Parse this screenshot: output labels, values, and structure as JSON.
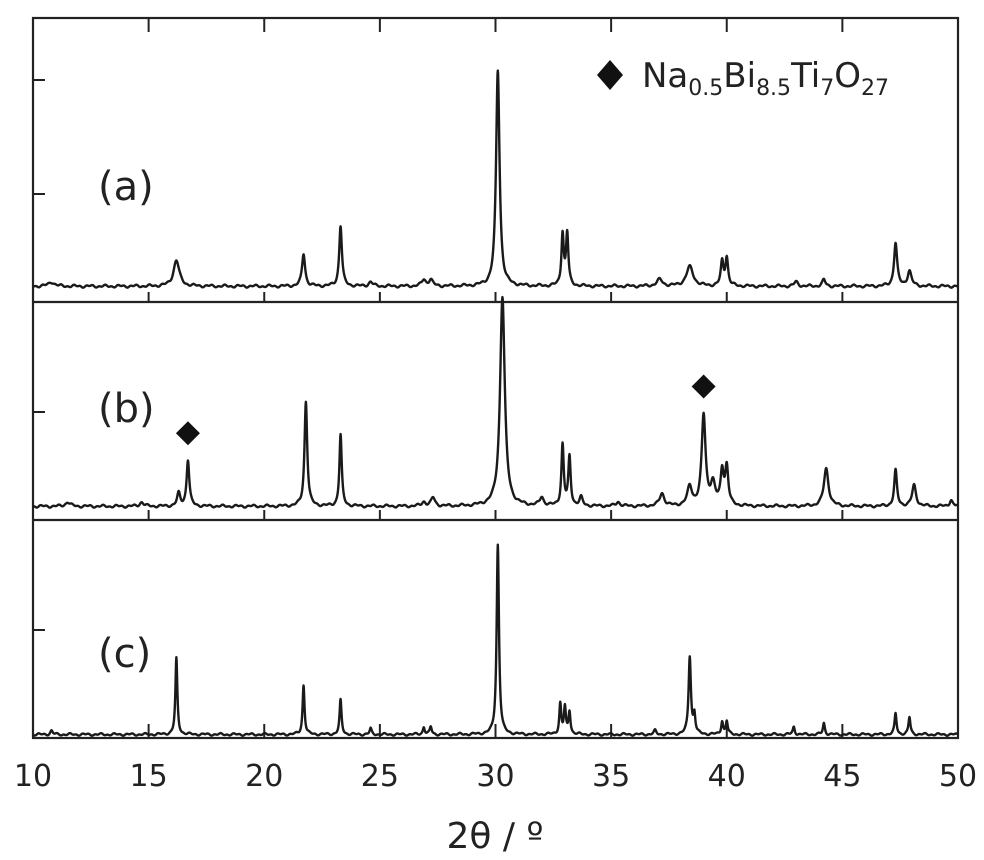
{
  "chart_data": {
    "type": "line",
    "xlabel": "2θ / º",
    "ylabel": "",
    "xlim": [
      10,
      50
    ],
    "x_ticks": [
      10,
      15,
      20,
      25,
      30,
      35,
      40,
      45,
      50
    ],
    "grid": false,
    "legend": {
      "placement": "top-right",
      "marker": "diamond",
      "formula": [
        {
          "text": "Na",
          "sub": false
        },
        {
          "text": "0.5",
          "sub": true
        },
        {
          "text": "Bi",
          "sub": false
        },
        {
          "text": "8.5",
          "sub": true
        },
        {
          "text": "Ti",
          "sub": false
        },
        {
          "text": "7",
          "sub": true
        },
        {
          "text": "O",
          "sub": false
        },
        {
          "text": "27",
          "sub": true
        }
      ]
    },
    "panels": [
      {
        "label": "(a)",
        "peaks": [
          {
            "x": 10.8,
            "h": 0.02,
            "w": 0.15
          },
          {
            "x": 16.2,
            "h": 0.12,
            "w": 0.15
          },
          {
            "x": 21.7,
            "h": 0.15,
            "w": 0.08
          },
          {
            "x": 23.3,
            "h": 0.28,
            "w": 0.07
          },
          {
            "x": 24.6,
            "h": 0.02,
            "w": 0.1
          },
          {
            "x": 26.9,
            "h": 0.03,
            "w": 0.1
          },
          {
            "x": 27.2,
            "h": 0.03,
            "w": 0.1
          },
          {
            "x": 30.1,
            "h": 1.0,
            "w": 0.09
          },
          {
            "x": 32.9,
            "h": 0.24,
            "w": 0.06
          },
          {
            "x": 33.1,
            "h": 0.24,
            "w": 0.06
          },
          {
            "x": 37.1,
            "h": 0.03,
            "w": 0.15
          },
          {
            "x": 38.4,
            "h": 0.09,
            "w": 0.18
          },
          {
            "x": 39.8,
            "h": 0.11,
            "w": 0.07
          },
          {
            "x": 40.0,
            "h": 0.13,
            "w": 0.07
          },
          {
            "x": 43.0,
            "h": 0.02,
            "w": 0.1
          },
          {
            "x": 44.2,
            "h": 0.03,
            "w": 0.08
          },
          {
            "x": 47.3,
            "h": 0.2,
            "w": 0.08
          },
          {
            "x": 47.9,
            "h": 0.07,
            "w": 0.1
          }
        ]
      },
      {
        "label": "(b)",
        "marker_positions": [
          16.7,
          39.0
        ],
        "peaks": [
          {
            "x": 11.5,
            "h": 0.02,
            "w": 0.12
          },
          {
            "x": 14.7,
            "h": 0.02,
            "w": 0.1
          },
          {
            "x": 16.3,
            "h": 0.06,
            "w": 0.08
          },
          {
            "x": 16.7,
            "h": 0.22,
            "w": 0.07
          },
          {
            "x": 21.8,
            "h": 0.5,
            "w": 0.07
          },
          {
            "x": 23.3,
            "h": 0.34,
            "w": 0.06
          },
          {
            "x": 26.9,
            "h": 0.02,
            "w": 0.1
          },
          {
            "x": 27.3,
            "h": 0.04,
            "w": 0.1
          },
          {
            "x": 30.3,
            "h": 1.0,
            "w": 0.12
          },
          {
            "x": 32.0,
            "h": 0.04,
            "w": 0.1
          },
          {
            "x": 32.9,
            "h": 0.29,
            "w": 0.06
          },
          {
            "x": 33.2,
            "h": 0.23,
            "w": 0.06
          },
          {
            "x": 33.7,
            "h": 0.04,
            "w": 0.08
          },
          {
            "x": 35.3,
            "h": 0.02,
            "w": 0.1
          },
          {
            "x": 37.2,
            "h": 0.06,
            "w": 0.12
          },
          {
            "x": 38.4,
            "h": 0.09,
            "w": 0.12
          },
          {
            "x": 39.0,
            "h": 0.43,
            "w": 0.1
          },
          {
            "x": 39.4,
            "h": 0.1,
            "w": 0.12
          },
          {
            "x": 39.8,
            "h": 0.16,
            "w": 0.08
          },
          {
            "x": 40.0,
            "h": 0.18,
            "w": 0.08
          },
          {
            "x": 44.3,
            "h": 0.18,
            "w": 0.12
          },
          {
            "x": 47.3,
            "h": 0.17,
            "w": 0.07
          },
          {
            "x": 48.1,
            "h": 0.1,
            "w": 0.1
          },
          {
            "x": 49.7,
            "h": 0.03,
            "w": 0.08
          }
        ]
      },
      {
        "label": "(c)",
        "peaks": [
          {
            "x": 10.8,
            "h": 0.02,
            "w": 0.06
          },
          {
            "x": 16.2,
            "h": 0.4,
            "w": 0.05
          },
          {
            "x": 21.7,
            "h": 0.26,
            "w": 0.05
          },
          {
            "x": 23.3,
            "h": 0.18,
            "w": 0.05
          },
          {
            "x": 24.6,
            "h": 0.03,
            "w": 0.05
          },
          {
            "x": 26.9,
            "h": 0.04,
            "w": 0.05
          },
          {
            "x": 27.2,
            "h": 0.04,
            "w": 0.05
          },
          {
            "x": 30.1,
            "h": 1.0,
            "w": 0.06
          },
          {
            "x": 32.8,
            "h": 0.16,
            "w": 0.05
          },
          {
            "x": 33.0,
            "h": 0.14,
            "w": 0.05
          },
          {
            "x": 33.2,
            "h": 0.12,
            "w": 0.05
          },
          {
            "x": 36.9,
            "h": 0.02,
            "w": 0.06
          },
          {
            "x": 38.4,
            "h": 0.41,
            "w": 0.06
          },
          {
            "x": 38.6,
            "h": 0.1,
            "w": 0.05
          },
          {
            "x": 39.8,
            "h": 0.07,
            "w": 0.05
          },
          {
            "x": 40.0,
            "h": 0.07,
            "w": 0.05
          },
          {
            "x": 42.9,
            "h": 0.04,
            "w": 0.05
          },
          {
            "x": 44.2,
            "h": 0.06,
            "w": 0.05
          },
          {
            "x": 47.3,
            "h": 0.11,
            "w": 0.05
          },
          {
            "x": 47.9,
            "h": 0.09,
            "w": 0.05
          }
        ]
      }
    ]
  }
}
